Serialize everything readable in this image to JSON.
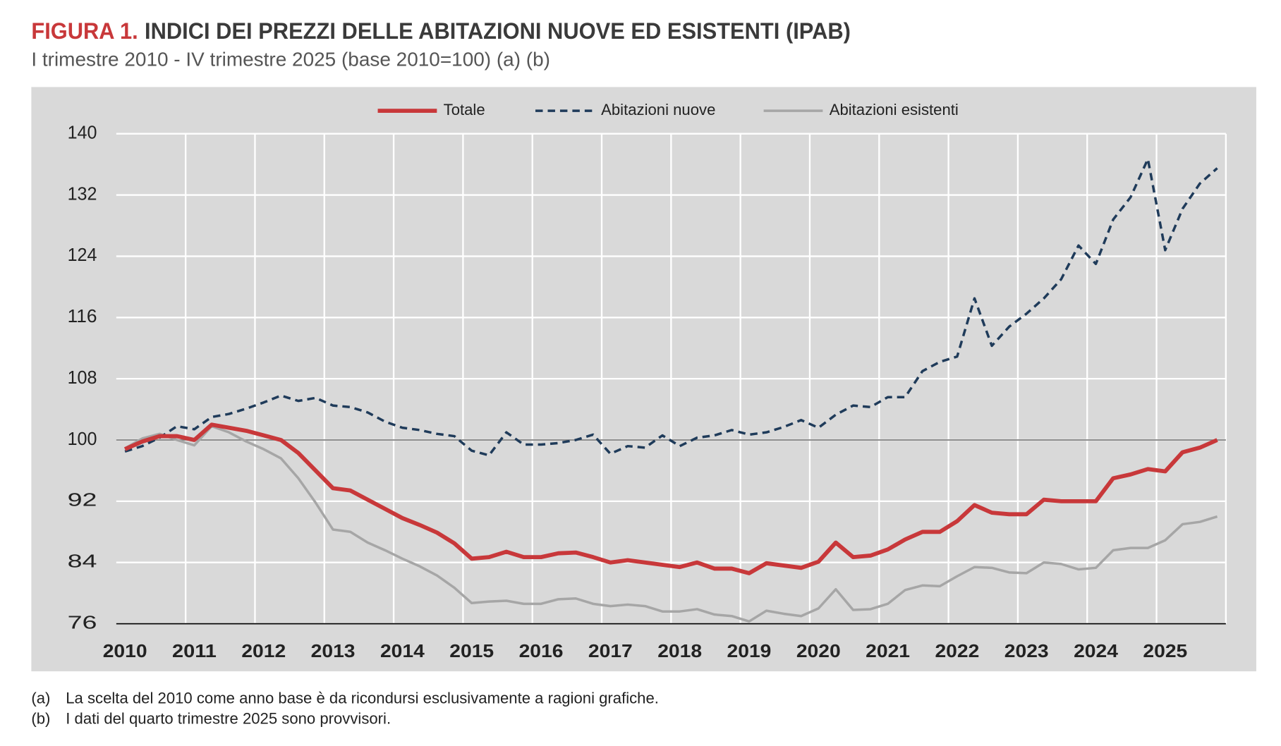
{
  "chart_data": {
    "type": "line",
    "title_label": "FIGURA 1.",
    "title": "INDICI DEI PREZZI DELLE ABITAZIONI NUOVE ED ESISTENTI (IPAB)",
    "subtitle": "I trimestre 2010 - IV trimestre 2025 (base 2010=100) (a) (b)",
    "notes": [
      {
        "marker": "(a)",
        "text": "La scelta del 2010 come anno base è da ricondursi esclusivamente a ragioni grafiche."
      },
      {
        "marker": "(b)",
        "text": "I dati del quarto trimestre 2025 sono provvisori."
      }
    ],
    "categories": [
      "2010",
      null,
      null,
      null,
      "2011",
      null,
      null,
      null,
      "2012",
      null,
      null,
      null,
      "2013",
      null,
      null,
      null,
      "2014",
      null,
      null,
      null,
      "2015",
      null,
      null,
      null,
      "2016",
      null,
      null,
      null,
      "2017",
      null,
      null,
      null,
      "2018",
      null,
      null,
      null,
      "2019",
      null,
      null,
      null,
      "2020",
      null,
      null,
      null,
      "2021",
      null,
      null,
      null,
      "2022",
      null,
      null,
      null,
      "2023",
      null,
      null,
      null,
      "2024",
      null,
      null,
      null,
      "2025",
      null,
      null,
      null
    ],
    "series": [
      {
        "name": "Totale",
        "color": "#c8383a",
        "dash": "solid",
        "width": 5,
        "values": [
          98.8,
          99.8,
          100.5,
          100.5,
          100.0,
          102.0,
          101.6,
          101.2,
          100.6,
          100.0,
          98.3,
          96.0,
          93.7,
          93.4,
          92.2,
          91.0,
          89.8,
          88.9,
          87.9,
          86.5,
          84.5,
          84.7,
          85.4,
          84.7,
          84.7,
          85.2,
          85.3,
          84.7,
          84.0,
          84.3,
          84.0,
          83.7,
          83.4,
          84.0,
          83.2,
          83.2,
          82.6,
          83.9,
          83.6,
          83.3,
          84.1,
          86.6,
          84.7,
          84.9,
          85.7,
          87.0,
          88.0,
          88.0,
          89.4,
          91.5,
          90.5,
          90.3,
          90.3,
          92.2,
          92.0,
          92.0,
          92.0,
          95.0,
          95.5,
          96.2,
          95.9,
          98.4,
          99.0,
          100.0
        ]
      },
      {
        "name": "Abitazioni nuove",
        "color": "#1f3b5a",
        "dash": "dashed",
        "width": 3,
        "values": [
          98.5,
          99.2,
          100.3,
          101.8,
          101.4,
          103.0,
          103.4,
          104.1,
          104.9,
          105.8,
          105.1,
          105.5,
          104.5,
          104.3,
          103.6,
          102.4,
          101.6,
          101.3,
          100.8,
          100.5,
          98.6,
          98.0,
          101.0,
          99.4,
          99.4,
          99.6,
          100.0,
          100.7,
          98.2,
          99.2,
          99.0,
          100.6,
          99.2,
          100.3,
          100.6,
          101.3,
          100.7,
          101.0,
          101.7,
          102.6,
          101.6,
          103.3,
          104.5,
          104.3,
          105.6,
          105.6,
          109.0,
          110.2,
          110.9,
          118.5,
          112.3,
          114.8,
          116.5,
          118.5,
          121.0,
          125.4,
          123.0,
          128.8,
          131.7,
          136.7,
          124.8,
          130.2,
          133.5,
          135.5
        ]
      },
      {
        "name": "Abitazioni esistenti",
        "color": "#a6a6a6",
        "dash": "solid",
        "width": 3,
        "values": [
          98.9,
          100.2,
          100.8,
          100.0,
          99.3,
          101.8,
          101.0,
          99.8,
          98.8,
          97.6,
          95.0,
          91.8,
          88.3,
          88.0,
          86.6,
          85.6,
          84.5,
          83.5,
          82.3,
          80.7,
          78.7,
          78.9,
          79.0,
          78.6,
          78.6,
          79.2,
          79.3,
          78.6,
          78.3,
          78.5,
          78.3,
          77.6,
          77.6,
          77.9,
          77.2,
          77.0,
          76.3,
          77.7,
          77.3,
          77.0,
          78.0,
          80.5,
          77.8,
          77.9,
          78.6,
          80.4,
          81.0,
          80.9,
          82.2,
          83.4,
          83.3,
          82.7,
          82.6,
          84.0,
          83.8,
          83.1,
          83.3,
          85.6,
          85.9,
          85.9,
          86.9,
          89.0,
          89.3,
          90.0
        ]
      }
    ],
    "ylim": [
      76,
      140
    ],
    "yticks": [
      76,
      84,
      92,
      100,
      108,
      116,
      124,
      132,
      140
    ],
    "baseline": 100,
    "grid": true,
    "legend": "top"
  }
}
